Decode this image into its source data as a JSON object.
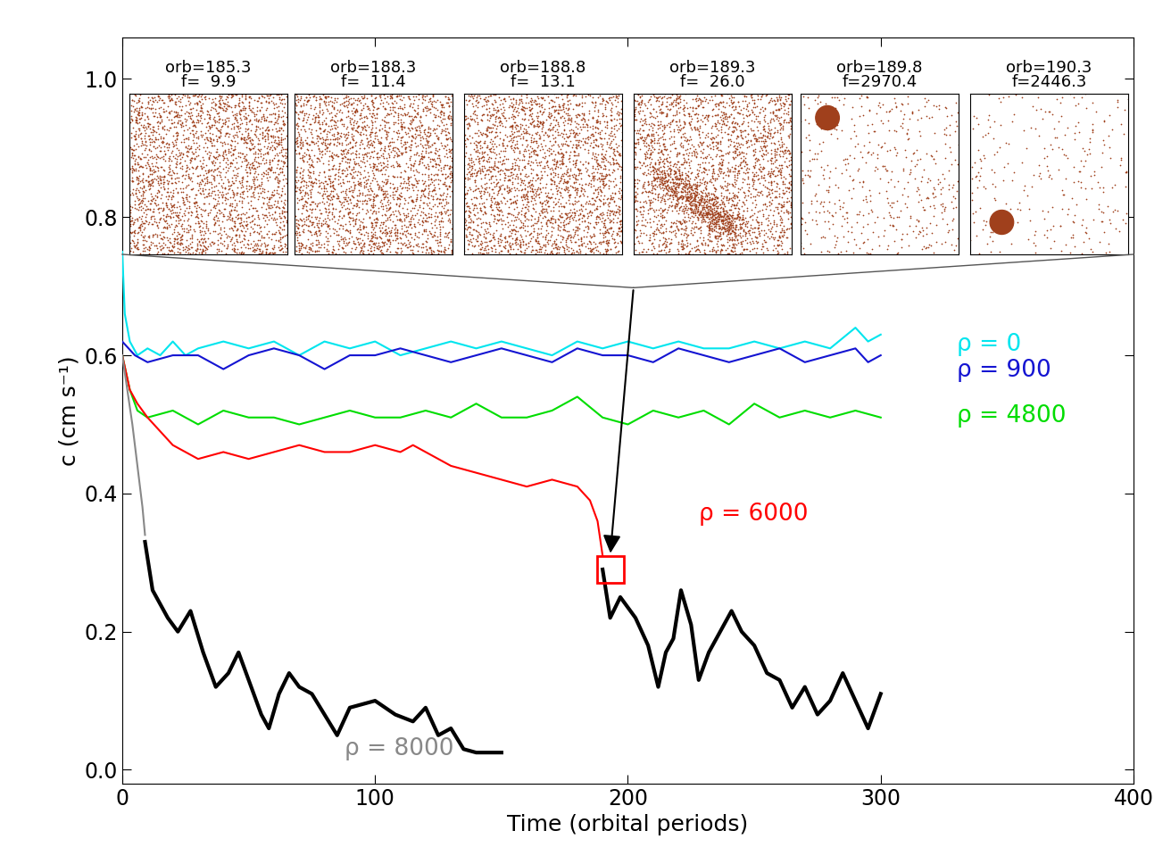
{
  "chart_data": {
    "type": "line",
    "x_label": "Time (orbital periods)",
    "y_label": "c (cm s⁻¹)",
    "xlim": [
      0,
      400
    ],
    "xticks": [
      0,
      100,
      200,
      300,
      400
    ],
    "ylim": [
      -0.02,
      1.06
    ],
    "yticks": [
      {
        "value": 0.0,
        "label": "0.0"
      },
      0.2,
      0.4,
      0.6,
      0.8,
      {
        "value": 1.0,
        "label": "1.0"
      }
    ],
    "grid": false,
    "series": [
      {
        "name": "ρ = 0",
        "color": "#00e5ee",
        "x": [
          0,
          1,
          3,
          6,
          10,
          15,
          20,
          25,
          30,
          40,
          50,
          60,
          70,
          80,
          90,
          100,
          110,
          120,
          130,
          140,
          150,
          160,
          170,
          180,
          190,
          200,
          210,
          220,
          230,
          240,
          250,
          260,
          270,
          280,
          290,
          295,
          300
        ],
        "values": [
          0.75,
          0.66,
          0.62,
          0.6,
          0.61,
          0.6,
          0.62,
          0.6,
          0.61,
          0.62,
          0.61,
          0.62,
          0.6,
          0.62,
          0.61,
          0.62,
          0.6,
          0.61,
          0.62,
          0.61,
          0.62,
          0.61,
          0.6,
          0.62,
          0.61,
          0.62,
          0.61,
          0.62,
          0.61,
          0.61,
          0.62,
          0.61,
          0.62,
          0.61,
          0.64,
          0.62,
          0.63
        ]
      },
      {
        "name": "ρ = 900",
        "color": "#1414d2",
        "x": [
          0,
          5,
          10,
          20,
          30,
          40,
          50,
          60,
          70,
          80,
          90,
          100,
          110,
          120,
          130,
          140,
          150,
          160,
          170,
          180,
          190,
          200,
          210,
          220,
          230,
          240,
          250,
          260,
          270,
          280,
          290,
          295,
          300
        ],
        "values": [
          0.62,
          0.6,
          0.59,
          0.6,
          0.6,
          0.58,
          0.6,
          0.61,
          0.6,
          0.58,
          0.6,
          0.6,
          0.61,
          0.6,
          0.59,
          0.6,
          0.61,
          0.6,
          0.59,
          0.61,
          0.6,
          0.6,
          0.59,
          0.61,
          0.6,
          0.59,
          0.6,
          0.61,
          0.59,
          0.6,
          0.61,
          0.59,
          0.6
        ]
      },
      {
        "name": "ρ = 4800",
        "color": "#00dd00",
        "x": [
          0,
          3,
          6,
          10,
          20,
          30,
          40,
          50,
          60,
          70,
          80,
          90,
          100,
          110,
          120,
          130,
          140,
          150,
          160,
          170,
          180,
          190,
          200,
          210,
          220,
          230,
          240,
          250,
          260,
          270,
          280,
          290,
          300
        ],
        "values": [
          0.6,
          0.55,
          0.52,
          0.51,
          0.52,
          0.5,
          0.52,
          0.51,
          0.51,
          0.5,
          0.51,
          0.52,
          0.51,
          0.51,
          0.52,
          0.51,
          0.53,
          0.51,
          0.51,
          0.52,
          0.54,
          0.51,
          0.5,
          0.52,
          0.51,
          0.52,
          0.5,
          0.53,
          0.51,
          0.52,
          0.51,
          0.52,
          0.51
        ]
      },
      {
        "name": "ρ = 6000",
        "color": "#ff0000",
        "x": [
          0,
          3,
          6,
          10,
          15,
          20,
          25,
          30,
          40,
          50,
          60,
          70,
          80,
          90,
          100,
          110,
          115,
          120,
          125,
          130,
          140,
          150,
          160,
          170,
          180,
          185,
          188,
          190
        ],
        "values": [
          0.6,
          0.55,
          0.53,
          0.51,
          0.49,
          0.47,
          0.46,
          0.45,
          0.46,
          0.45,
          0.46,
          0.47,
          0.46,
          0.46,
          0.47,
          0.46,
          0.47,
          0.46,
          0.45,
          0.44,
          0.43,
          0.42,
          0.41,
          0.42,
          0.41,
          0.39,
          0.36,
          0.31
        ]
      },
      {
        "color": "#000000",
        "x": [
          190,
          193,
          197,
          203,
          208,
          212,
          215,
          218,
          221,
          225,
          228,
          232,
          238,
          241,
          245,
          250,
          255,
          260,
          265,
          270,
          275,
          280,
          285,
          290,
          295,
          300
        ],
        "values": [
          0.29,
          0.22,
          0.25,
          0.22,
          0.18,
          0.12,
          0.17,
          0.19,
          0.26,
          0.21,
          0.13,
          0.17,
          0.21,
          0.23,
          0.2,
          0.18,
          0.14,
          0.13,
          0.09,
          0.12,
          0.08,
          0.1,
          0.14,
          0.1,
          0.06,
          0.11
        ]
      },
      {
        "name": "ρ = 8000",
        "color": "#888888",
        "x": [
          0,
          2,
          4,
          6,
          8,
          9
        ],
        "values": [
          0.6,
          0.55,
          0.5,
          0.44,
          0.38,
          0.34
        ]
      },
      {
        "color": "#000000",
        "x": [
          9,
          12,
          18,
          22,
          27,
          32,
          37,
          42,
          46,
          50,
          55,
          58,
          62,
          66,
          70,
          75,
          80,
          85,
          90,
          100,
          108,
          115,
          120,
          125,
          130,
          135,
          140,
          150
        ],
        "values": [
          0.33,
          0.26,
          0.22,
          0.2,
          0.23,
          0.17,
          0.12,
          0.14,
          0.17,
          0.13,
          0.08,
          0.06,
          0.11,
          0.14,
          0.12,
          0.11,
          0.08,
          0.05,
          0.09,
          0.1,
          0.08,
          0.07,
          0.09,
          0.05,
          0.06,
          0.03,
          0.025,
          0.025
        ]
      }
    ],
    "snapshots": [
      {
        "title": [
          "orb=185.3",
          "f=  9.9"
        ]
      },
      {
        "title": [
          "orb=188.3",
          "f=  11.4"
        ]
      },
      {
        "title": [
          "orb=188.8",
          "f=  13.1"
        ]
      },
      {
        "title": [
          "orb=189.3",
          "f=  26.0"
        ]
      },
      {
        "title": [
          "orb=189.8",
          "f=2970.4"
        ]
      },
      {
        "title": [
          "orb=190.3",
          "f=2446.3"
        ]
      }
    ]
  }
}
